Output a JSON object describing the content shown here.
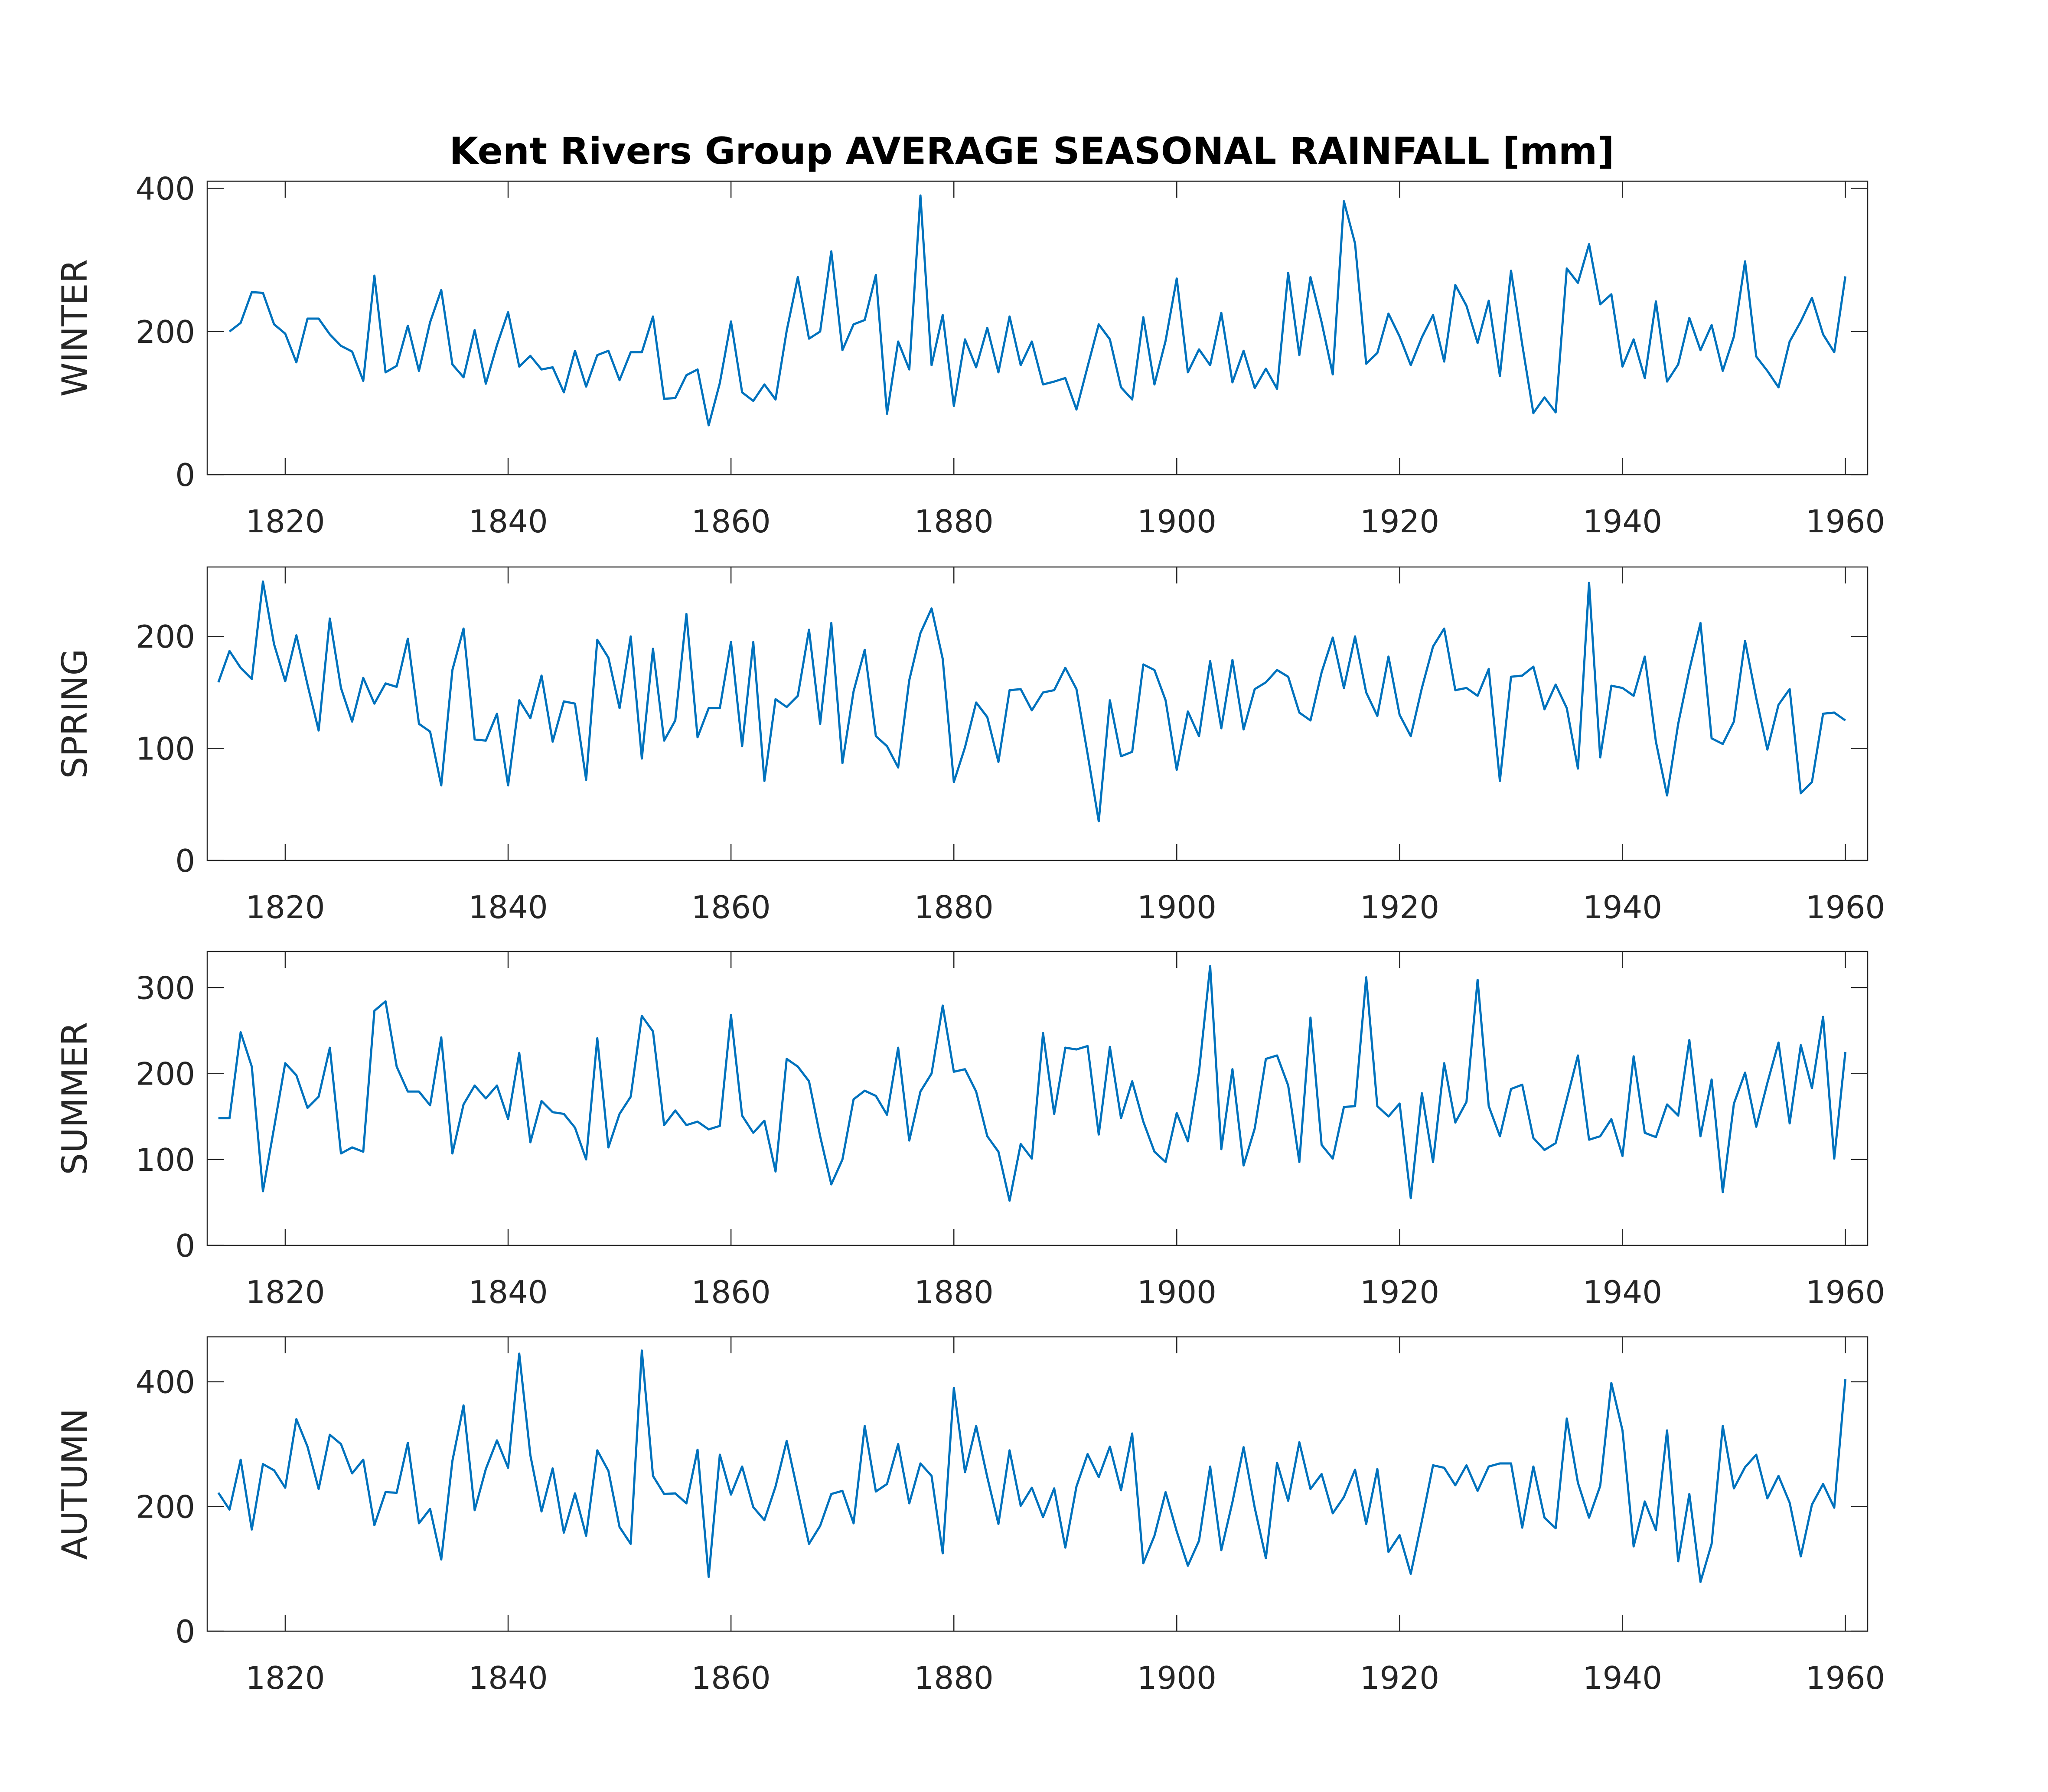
{
  "title": "Kent Rivers Group AVERAGE SEASONAL RAINFALL [mm]",
  "colors": {
    "line": "#0072bd",
    "axis": "#262626",
    "background": "#ffffff"
  },
  "chart_data": [
    {
      "type": "line",
      "ylabel": "WINTER",
      "xlim": [
        1813,
        1962
      ],
      "ylim": [
        0,
        410
      ],
      "xticks": [
        1820,
        1840,
        1860,
        1880,
        1900,
        1920,
        1940,
        1960
      ],
      "yticks": [
        0,
        200,
        400
      ],
      "start_year": 1815,
      "values": [
        200,
        212,
        255,
        254,
        210,
        197,
        157,
        218,
        218,
        196,
        180,
        172,
        131,
        278,
        143,
        152,
        208,
        145,
        213,
        258,
        154,
        136,
        202,
        127,
        181,
        227,
        151,
        166,
        147,
        150,
        115,
        173,
        123,
        167,
        173,
        132,
        171,
        171,
        221,
        106,
        107,
        139,
        147,
        69,
        128,
        214,
        115,
        103,
        126,
        105,
        201,
        276,
        190,
        200,
        312,
        174,
        210,
        216,
        279,
        85,
        186,
        147,
        390,
        153,
        223,
        96,
        189,
        150,
        205,
        143,
        221,
        153,
        186,
        126,
        130,
        135,
        91,
        151,
        210,
        189,
        122,
        105,
        220,
        126,
        187,
        274,
        143,
        175,
        153,
        226,
        129,
        173,
        121,
        148,
        120,
        282,
        167,
        276,
        213,
        140,
        382,
        323,
        155,
        170,
        225,
        193,
        153,
        192,
        223,
        158,
        265,
        236,
        184,
        243,
        138,
        285,
        182,
        86,
        108,
        87,
        288,
        268,
        322,
        238,
        252,
        151,
        189,
        135,
        242,
        130,
        154,
        219,
        174,
        209,
        145,
        193,
        298,
        165,
        145,
        122,
        186,
        214,
        247,
        196,
        171,
        277
      ]
    },
    {
      "type": "line",
      "ylabel": "SPRING",
      "xlim": [
        1813,
        1962
      ],
      "ylim": [
        0,
        262
      ],
      "xticks": [
        1820,
        1840,
        1860,
        1880,
        1900,
        1920,
        1940,
        1960
      ],
      "yticks": [
        0,
        100,
        200
      ],
      "start_year": 1814,
      "values": [
        159,
        187,
        172,
        162,
        249,
        193,
        160,
        201,
        157,
        116,
        216,
        154,
        124,
        163,
        140,
        158,
        155,
        198,
        122,
        115,
        67,
        170,
        207,
        108,
        107,
        131,
        67,
        143,
        127,
        165,
        106,
        142,
        140,
        72,
        197,
        181,
        136,
        200,
        91,
        189,
        107,
        125,
        220,
        110,
        136,
        136,
        195,
        102,
        195,
        71,
        144,
        137,
        147,
        206,
        122,
        212,
        87,
        151,
        188,
        111,
        102,
        83,
        161,
        203,
        225,
        180,
        70,
        101,
        141,
        128,
        88,
        152,
        153,
        134,
        150,
        152,
        172,
        153,
        95,
        35,
        143,
        93,
        97,
        175,
        170,
        143,
        81,
        133,
        111,
        178,
        118,
        179,
        117,
        153,
        159,
        170,
        164,
        132,
        125,
        168,
        199,
        154,
        200,
        150,
        129,
        182,
        130,
        111,
        154,
        191,
        207,
        152,
        154,
        147,
        171,
        71,
        164,
        165,
        173,
        135,
        157,
        136,
        82,
        248,
        92,
        156,
        154,
        147,
        182,
        106,
        58,
        122,
        170,
        212,
        109,
        104,
        124,
        196,
        145,
        99,
        139,
        153,
        60,
        70,
        131,
        132,
        125
      ]
    },
    {
      "type": "line",
      "ylabel": "SUMMER",
      "xlim": [
        1813,
        1962
      ],
      "ylim": [
        0,
        342
      ],
      "xticks": [
        1820,
        1840,
        1860,
        1880,
        1900,
        1920,
        1940,
        1960
      ],
      "yticks": [
        0,
        100,
        200,
        300
      ],
      "start_year": 1814,
      "values": [
        148,
        148,
        248,
        208,
        63,
        137,
        212,
        198,
        160,
        173,
        230,
        107,
        114,
        109,
        273,
        284,
        208,
        179,
        179,
        163,
        242,
        107,
        164,
        186,
        171,
        186,
        147,
        224,
        120,
        168,
        155,
        153,
        137,
        100,
        241,
        114,
        153,
        173,
        267,
        249,
        140,
        157,
        140,
        144,
        135,
        139,
        268,
        151,
        131,
        145,
        86,
        217,
        208,
        191,
        127,
        71,
        100,
        170,
        180,
        174,
        152,
        230,
        122,
        179,
        200,
        279,
        202,
        205,
        179,
        127,
        109,
        52,
        118,
        101,
        247,
        153,
        230,
        228,
        232,
        129,
        231,
        148,
        191,
        144,
        109,
        97,
        154,
        121,
        202,
        325,
        112,
        205,
        93,
        136,
        217,
        221,
        186,
        97,
        265,
        117,
        101,
        161,
        162,
        312,
        162,
        150,
        165,
        55,
        177,
        97,
        212,
        143,
        167,
        309,
        162,
        127,
        182,
        187,
        125,
        111,
        119,
        170,
        221,
        123,
        127,
        147,
        104,
        220,
        131,
        126,
        164,
        151,
        239,
        127,
        193,
        62,
        165,
        201,
        138,
        189,
        236,
        142,
        233,
        183,
        266,
        101,
        225
      ]
    },
    {
      "type": "line",
      "ylabel": "AUTUMN",
      "xlim": [
        1813,
        1962
      ],
      "ylim": [
        0,
        472
      ],
      "xticks": [
        1820,
        1840,
        1860,
        1880,
        1900,
        1920,
        1940,
        1960
      ],
      "yticks": [
        0,
        200,
        400
      ],
      "start_year": 1814,
      "values": [
        222,
        195,
        275,
        163,
        268,
        258,
        230,
        340,
        296,
        228,
        315,
        300,
        253,
        275,
        170,
        223,
        222,
        302,
        173,
        196,
        115,
        273,
        362,
        194,
        260,
        306,
        262,
        445,
        282,
        192,
        261,
        158,
        221,
        153,
        290,
        257,
        167,
        140,
        450,
        249,
        220,
        221,
        205,
        291,
        87,
        283,
        219,
        264,
        199,
        178,
        232,
        305,
        223,
        140,
        169,
        220,
        225,
        173,
        329,
        224,
        236,
        300,
        205,
        269,
        249,
        125,
        390,
        255,
        329,
        247,
        172,
        290,
        201,
        230,
        183,
        229,
        134,
        232,
        284,
        247,
        296,
        226,
        317,
        109,
        153,
        223,
        160,
        105,
        145,
        264,
        130,
        207,
        295,
        198,
        117,
        270,
        209,
        303,
        228,
        252,
        189,
        215,
        259,
        172,
        260,
        127,
        154,
        92,
        177,
        266,
        262,
        234,
        266,
        225,
        264,
        269,
        269,
        166,
        264,
        182,
        165,
        341,
        238,
        182,
        233,
        398,
        322,
        136,
        208,
        162,
        322,
        112,
        220,
        79,
        140,
        329,
        229,
        263,
        283,
        213,
        249,
        206,
        120,
        203,
        236,
        198,
        404
      ]
    }
  ]
}
